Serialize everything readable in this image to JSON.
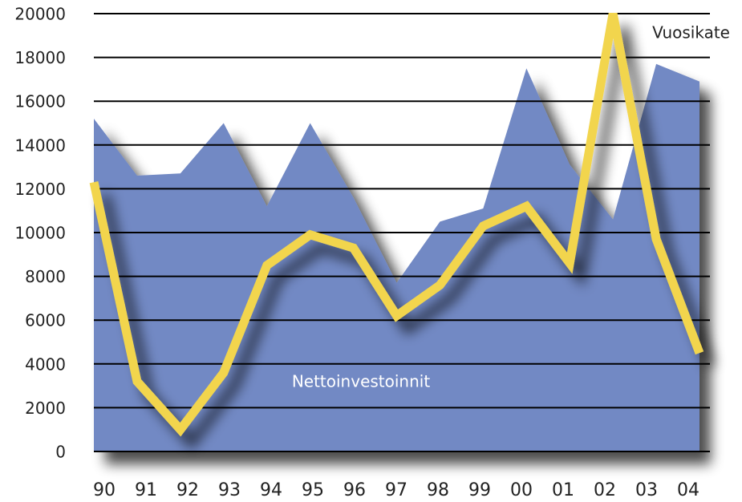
{
  "chart_data": {
    "type": "area",
    "categories": [
      "90",
      "91",
      "92",
      "93",
      "94",
      "95",
      "96",
      "97",
      "98",
      "99",
      "00",
      "01",
      "02",
      "03",
      "04"
    ],
    "series": [
      {
        "name": "Nettoinvestoinnit",
        "type": "area",
        "color": "#7289c4",
        "values": [
          15200,
          12600,
          12700,
          15000,
          11200,
          15000,
          11600,
          7700,
          10500,
          11100,
          17500,
          13100,
          10600,
          17700,
          16900
        ]
      },
      {
        "name": "Vuosikate",
        "type": "line",
        "color": "#f2d54e",
        "values": [
          12300,
          3200,
          1000,
          3600,
          8500,
          9900,
          9300,
          6200,
          7600,
          10300,
          11200,
          8600,
          20000,
          9700,
          4500
        ]
      }
    ],
    "ylim": [
      0,
      20000
    ],
    "yticks": [
      0,
      2000,
      4000,
      6000,
      8000,
      10000,
      12000,
      14000,
      16000,
      18000,
      20000
    ],
    "grid": true
  }
}
